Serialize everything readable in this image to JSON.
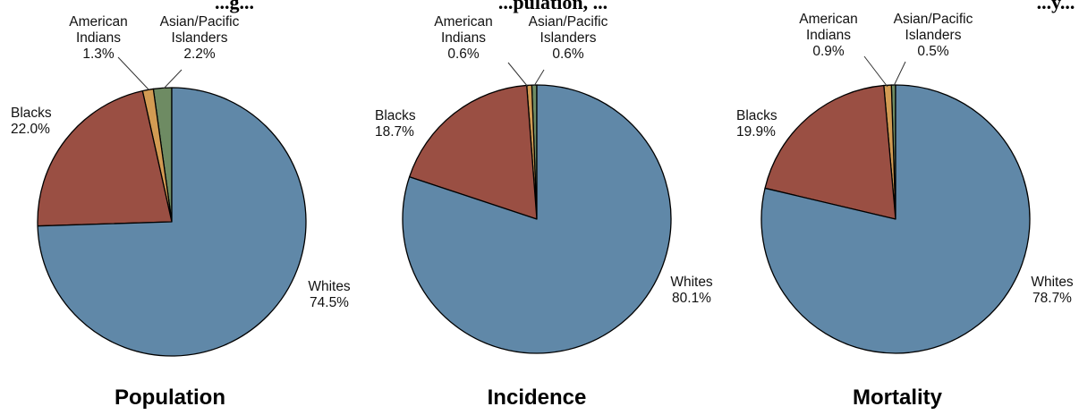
{
  "header_fragments": [
    "...g...",
    "...pulation, ...",
    "...y..."
  ],
  "colors": {
    "Whites": "#6088a8",
    "Blacks": "#9a4f43",
    "American Indians": "#d29b53",
    "Asian/Pacific Islanders": "#6e8b63"
  },
  "chart_data": [
    {
      "type": "pie",
      "title": "Population",
      "slices": [
        {
          "name": "Whites",
          "label": [
            "Whites",
            "74.5%"
          ],
          "value": 74.5
        },
        {
          "name": "Blacks",
          "label": [
            "Blacks",
            "22.0%"
          ],
          "value": 22.0
        },
        {
          "name": "American Indians",
          "label": [
            "American",
            "Indians",
            "1.3%"
          ],
          "value": 1.3
        },
        {
          "name": "Asian/Pacific Islanders",
          "label": [
            "Asian/Pacific",
            "Islanders",
            "2.2%"
          ],
          "value": 2.2
        }
      ]
    },
    {
      "type": "pie",
      "title": "Incidence",
      "slices": [
        {
          "name": "Whites",
          "label": [
            "Whites",
            "80.1%"
          ],
          "value": 80.1
        },
        {
          "name": "Blacks",
          "label": [
            "Blacks",
            "18.7%"
          ],
          "value": 18.7
        },
        {
          "name": "American Indians",
          "label": [
            "American",
            "Indians",
            "0.6%"
          ],
          "value": 0.6
        },
        {
          "name": "Asian/Pacific Islanders",
          "label": [
            "Asian/Pacific",
            "Islanders",
            "0.6%"
          ],
          "value": 0.6
        }
      ]
    },
    {
      "type": "pie",
      "title": "Mortality",
      "slices": [
        {
          "name": "Whites",
          "label": [
            "Whites",
            "78.7%"
          ],
          "value": 78.7
        },
        {
          "name": "Blacks",
          "label": [
            "Blacks",
            "19.9%"
          ],
          "value": 19.9
        },
        {
          "name": "American Indians",
          "label": [
            "American",
            "Indians",
            "0.9%"
          ],
          "value": 0.9
        },
        {
          "name": "Asian/Pacific Islanders",
          "label": [
            "Asian/Pacific",
            "Islanders",
            "0.5%"
          ],
          "value": 0.5
        }
      ]
    }
  ]
}
